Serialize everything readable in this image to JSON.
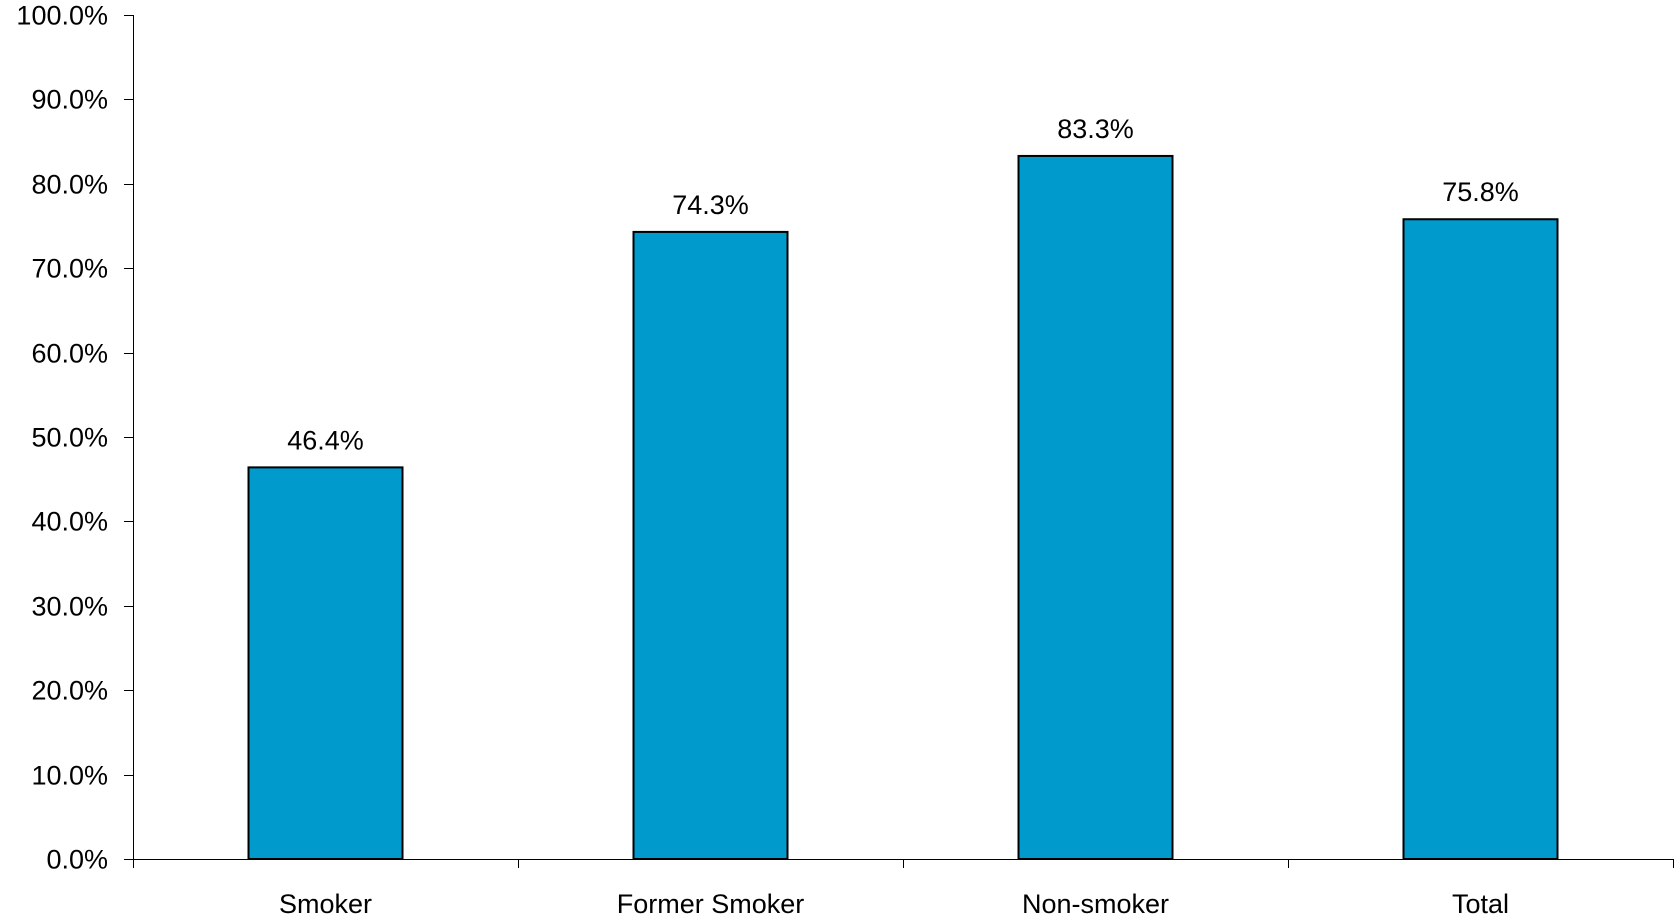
{
  "chart_data": {
    "type": "bar",
    "title": "",
    "xlabel": "",
    "ylabel": "",
    "categories": [
      "Smoker",
      "Former Smoker",
      "Non-smoker",
      "Total"
    ],
    "values": [
      46.4,
      74.3,
      83.3,
      75.8
    ],
    "data_labels": [
      "46.4%",
      "74.3%",
      "83.3%",
      "75.8%"
    ],
    "ylim": [
      0,
      100
    ],
    "y_ticks": [
      0,
      10,
      20,
      30,
      40,
      50,
      60,
      70,
      80,
      90,
      100
    ],
    "y_tick_labels": [
      "0.0%",
      "10.0%",
      "20.0%",
      "30.0%",
      "40.0%",
      "50.0%",
      "60.0%",
      "70.0%",
      "80.0%",
      "90.0%",
      "100.0%"
    ],
    "grid": false,
    "legend": "none",
    "bar_color": "#009acd",
    "bar_edge_color": "#000000"
  }
}
